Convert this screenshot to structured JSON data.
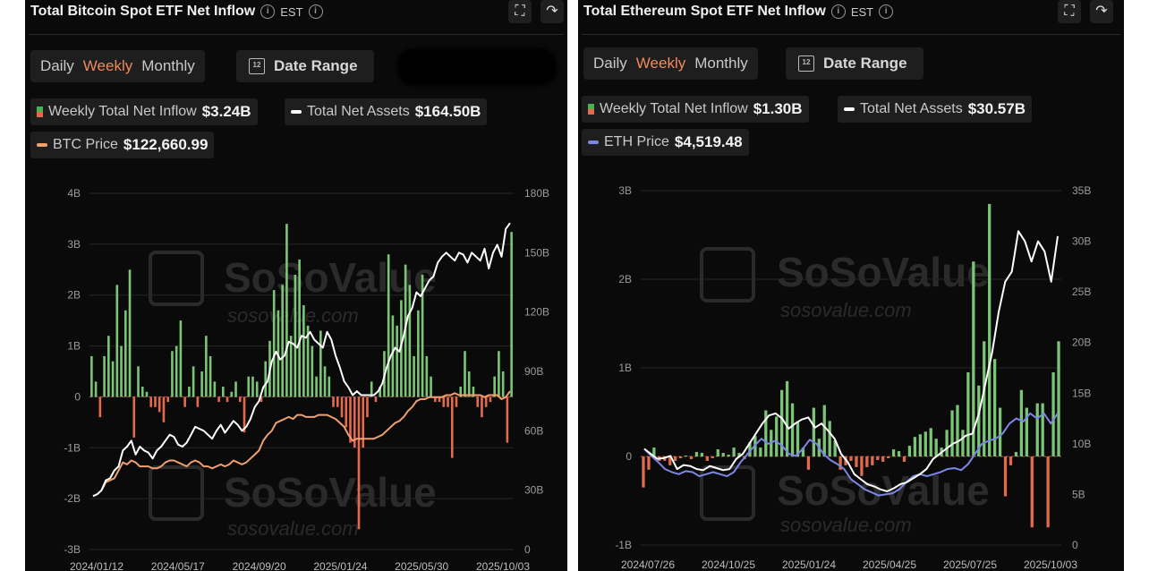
{
  "panels": {
    "btc": {
      "title": "Total Bitcoin Spot ETF Net Inflow",
      "timezone": "EST",
      "periods": [
        "Daily",
        "Weekly",
        "Monthly"
      ],
      "active_period": "Weekly",
      "date_range_label": "Date Range",
      "legend": {
        "inflow_label": "Weekly Total Net Inflow",
        "inflow_value": "$3.24B",
        "assets_label": "Total Net Assets",
        "assets_value": "$164.50B",
        "price_label": "BTC Price",
        "price_value": "$122,660.99"
      },
      "watermark_text": "SoSoValue",
      "watermark_url": "sosovalue.com"
    },
    "eth": {
      "title": "Total Ethereum Spot ETF Net Inflow",
      "timezone": "EST",
      "periods": [
        "Daily",
        "Weekly",
        "Monthly"
      ],
      "active_period": "Weekly",
      "date_range_label": "Date Range",
      "legend": {
        "inflow_label": "Weekly Total Net Inflow",
        "inflow_value": "$1.30B",
        "assets_label": "Total Net Assets",
        "assets_value": "$30.57B",
        "price_label": "ETH Price",
        "price_value": "$4,519.48"
      },
      "watermark_text": "SoSoValue",
      "watermark_url": "sosovalue.com"
    }
  },
  "colors": {
    "inflow_positive": "#7cc576",
    "inflow_negative": "#e36a4a",
    "assets_line": "#ffffff",
    "btc_price_line": "#f0a070",
    "eth_price_line": "#7b86e6"
  },
  "chart_data": [
    {
      "type": "bar",
      "title": "Total Bitcoin Spot ETF Net Inflow",
      "left_axis": {
        "ticks": [
          "4B",
          "3B",
          "2B",
          "1B",
          "0",
          "-1B",
          "-2B",
          "-3B"
        ],
        "range": [
          -3,
          4
        ]
      },
      "right_axis": {
        "ticks": [
          "180B",
          "150B",
          "120B",
          "90B",
          "60B",
          "30B",
          "0"
        ],
        "range": [
          0,
          180
        ]
      },
      "x_tick_labels": [
        "2024/01/12",
        "2024/05/17",
        "2024/09/20",
        "2025/01/24",
        "2025/05/30",
        "2025/10/03"
      ],
      "series": [
        {
          "name": "Weekly Total Net Inflow",
          "axis": "left",
          "values": [
            0.8,
            0.3,
            -0.4,
            0.8,
            1.2,
            0.7,
            2.2,
            1.0,
            1.7,
            2.5,
            -0.8,
            0.6,
            0.2,
            0.1,
            -0.2,
            -0.2,
            -0.3,
            -0.5,
            -0.1,
            0.9,
            1.0,
            1.5,
            -0.2,
            0.2,
            0.6,
            -0.2,
            0.5,
            1.2,
            0.8,
            0.3,
            -0.1,
            0.2,
            -0.1,
            0.1,
            0.3,
            -0.1,
            -0.7,
            0.4,
            0.4,
            0.3,
            -0.1,
            0.7,
            1.1,
            2.1,
            1.7,
            2.2,
            3.4,
            1.2,
            2.4,
            2.7,
            1.8,
            1.4,
            1.0,
            0.4,
            1.3,
            0.6,
            0.4,
            -0.2,
            -0.2,
            -0.4,
            -0.6,
            -0.9,
            -1.0,
            -2.6,
            -1.0,
            -0.4,
            0.3,
            -0.1,
            0.2,
            0.9,
            2.8,
            1.6,
            1.4,
            1.9,
            2.6,
            2.2,
            0.8,
            1.7,
            2.4,
            0.8,
            0.4,
            -0.1,
            -0.1,
            -0.2,
            -0.2,
            -1.2,
            -0.2,
            0.2,
            0.9,
            0.5,
            0.2,
            -0.2,
            -0.4,
            -0.2,
            -0.1,
            0.4,
            0.9,
            0.5,
            -0.9,
            3.24
          ]
        },
        {
          "name": "Total Net Assets",
          "axis": "right",
          "values": [
            27,
            28,
            30,
            35,
            36,
            40,
            42,
            50,
            52,
            55,
            48,
            52,
            50,
            49,
            46,
            50,
            52,
            55,
            58,
            57,
            53,
            52,
            54,
            58,
            62,
            61,
            60,
            58,
            56,
            60,
            63,
            59,
            62,
            65,
            63,
            60,
            62,
            66,
            72,
            75,
            82,
            85,
            95,
            100,
            96,
            98,
            105,
            104,
            102,
            108,
            107,
            110,
            106,
            104,
            102,
            110,
            106,
            98,
            92,
            85,
            82,
            78,
            80,
            78,
            78,
            78,
            78,
            80,
            84,
            92,
            98,
            102,
            100,
            108,
            118,
            122,
            130,
            128,
            132,
            136,
            138,
            145,
            148,
            150,
            148,
            146,
            150,
            149,
            145,
            150,
            148,
            146,
            152,
            142,
            150,
            154,
            148,
            162,
            165
          ]
        },
        {
          "name": "BTC Price",
          "axis": "right",
          "values": [
            27,
            28,
            30,
            34,
            35,
            36,
            40,
            44,
            43,
            45,
            44,
            42,
            42,
            42,
            41,
            41,
            42,
            44,
            45,
            45,
            44,
            43,
            42,
            44,
            45,
            44,
            42,
            42,
            41,
            42,
            43,
            42,
            43,
            45,
            44,
            43,
            44,
            46,
            48,
            50,
            55,
            58,
            60,
            64,
            65,
            66,
            67,
            66,
            68,
            68,
            67,
            67,
            67,
            68,
            68,
            68,
            67,
            66,
            64,
            62,
            58,
            55,
            56,
            56,
            56,
            56,
            56,
            57,
            58,
            60,
            62,
            64,
            65,
            67,
            70,
            72,
            75,
            76,
            76,
            77,
            77,
            77,
            77,
            78,
            78,
            79,
            78,
            78,
            78,
            78,
            78,
            78,
            77,
            78,
            78,
            78,
            76,
            77,
            80
          ]
        }
      ]
    },
    {
      "type": "bar",
      "title": "Total Ethereum Spot ETF Net Inflow",
      "left_axis": {
        "ticks": [
          "3B",
          "2B",
          "1B",
          "0",
          "-1B"
        ],
        "range": [
          -1,
          3
        ]
      },
      "right_axis": {
        "ticks": [
          "35B",
          "30B",
          "25B",
          "20B",
          "15B",
          "10B",
          "5B",
          "0"
        ],
        "range": [
          0,
          35
        ]
      },
      "x_tick_labels": [
        "2024/07/26",
        "2024/10/25",
        "2025/01/24",
        "2025/04/25",
        "2025/07/25",
        "2025/10/03"
      ],
      "series": [
        {
          "name": "Weekly Total Net Inflow",
          "axis": "left",
          "values": [
            -0.35,
            -0.15,
            0.1,
            -0.05,
            -0.05,
            -0.1,
            -0.05,
            -0.02,
            0.01,
            -0.03,
            0.05,
            0.04,
            -0.05,
            -0.02,
            0.08,
            0.04,
            0.02,
            0.1,
            0.04,
            -0.03,
            0.16,
            0.23,
            0.1,
            0.52,
            0.3,
            0.45,
            0.75,
            0.85,
            0.6,
            0.4,
            0.1,
            -0.15,
            0.55,
            0.2,
            0.58,
            0.4,
            0.18,
            -0.15,
            -0.1,
            -0.05,
            -0.12,
            -0.22,
            -0.12,
            -0.1,
            -0.04,
            -0.06,
            -0.02,
            0.08,
            0.06,
            -0.06,
            0.12,
            0.22,
            0.25,
            0.28,
            0.32,
            0.2,
            0.1,
            0.3,
            0.52,
            0.58,
            0.3,
            0.95,
            2.2,
            0.8,
            1.3,
            2.85,
            1.1,
            0.55,
            -0.45,
            -0.1,
            0.05,
            0.75,
            0.55,
            -0.8,
            0.6,
            0.6,
            -0.8,
            0.95,
            1.3
          ]
        },
        {
          "name": "Total Net Assets",
          "axis": "right",
          "values": [
            9.5,
            9,
            8.5,
            8.6,
            8.8,
            7.5,
            7.9,
            7.8,
            7.5,
            7.4,
            7.8,
            7.6,
            7.4,
            7.5,
            8.5,
            9,
            10,
            11,
            12,
            12.8,
            13,
            12.5,
            11.5,
            12,
            12.4,
            12.6,
            11.6,
            12,
            11.3,
            10.5,
            9,
            8.2,
            7,
            6.5,
            6,
            5.8,
            5.5,
            5.3,
            5.6,
            6,
            6.2,
            6.6,
            7,
            7.5,
            8.5,
            9,
            9.5,
            10,
            10.3,
            10.8,
            11,
            13,
            16,
            19,
            23,
            26,
            27,
            31,
            30,
            28,
            30,
            29,
            26,
            30.5
          ]
        },
        {
          "name": "ETH Price",
          "axis": "right",
          "values": [
            9.5,
            8.8,
            8.2,
            7.5,
            7.2,
            7,
            7.3,
            7.2,
            6.8,
            7,
            7.2,
            7,
            6.8,
            7.2,
            8.2,
            9,
            9.8,
            10.5,
            10,
            10.3,
            9.8,
            9,
            8.8,
            9.5,
            10.4,
            10,
            9,
            8.4,
            8,
            7.5,
            6.5,
            6,
            5.5,
            5.2,
            4.9,
            5,
            5.1,
            5.5,
            6.2,
            6.8,
            7,
            6.8,
            7,
            7.2,
            7.5,
            7.6,
            7.4,
            8,
            9,
            10,
            10.3,
            10.5,
            11,
            12,
            12.5,
            12.2,
            13,
            12.5,
            13,
            12,
            13
          ]
        }
      ]
    }
  ]
}
